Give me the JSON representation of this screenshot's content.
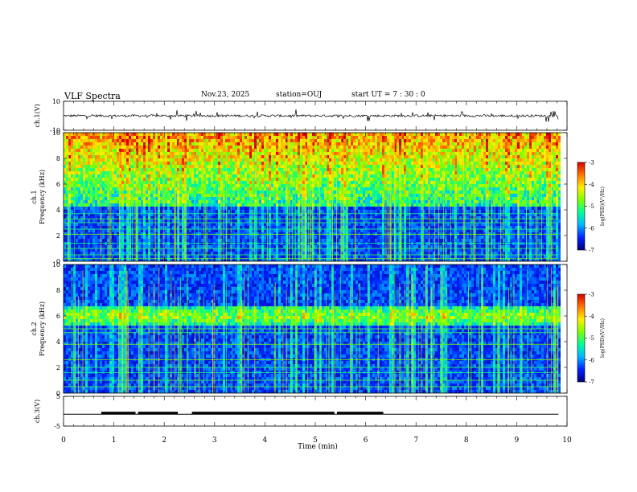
{
  "header": {
    "title": "VLF Spectra",
    "date": "Nov.23, 2025",
    "station": "station=OUJ",
    "start": "start  UT =   7 : 30 : 0"
  },
  "chart_data": {
    "type": "heatmap",
    "title": "VLF Spectra",
    "xlabel": "Time  (min)",
    "xlim": [
      0,
      10
    ],
    "x_ticks": [
      "0",
      "1",
      "2",
      "3",
      "4",
      "5",
      "6",
      "7",
      "8",
      "9",
      "10"
    ],
    "data_end_min": 9.83,
    "panels": [
      {
        "name": "ch1-waveform",
        "type": "line",
        "ylabel": "ch.1(V)",
        "ylim": [
          -10,
          10
        ],
        "y_ticks": [
          "10",
          "-10"
        ],
        "baseline": 0,
        "noise_amplitude": 0.8
      },
      {
        "name": "ch1-spectrogram",
        "type": "heatmap",
        "ylabel_line1": "ch.1",
        "ylabel_line2": "Frequency  (kHz)",
        "ylim": [
          0,
          10
        ],
        "y_ticks": [
          "0",
          "2",
          "4",
          "6",
          "8",
          "10"
        ],
        "noise_band_khz": [
          4.5,
          10
        ],
        "line_frequencies_khz": [
          0.2,
          0.5,
          1.0,
          1.4,
          2.1,
          2.5,
          3.0,
          3.3,
          3.7
        ],
        "colorbar": {
          "label": "log(PSD)(V²/Hz)",
          "range": [
            -7,
            -3
          ],
          "ticks": [
            "-3",
            "-4",
            "-5",
            "-6",
            "-7"
          ]
        }
      },
      {
        "name": "ch2-spectrogram",
        "type": "heatmap",
        "ylabel_line1": "ch.2",
        "ylabel_line2": "Frequency  (kHz)",
        "ylim": [
          0,
          10
        ],
        "y_ticks": [
          "0",
          "2",
          "4",
          "6",
          "8",
          "10"
        ],
        "noise_band_khz": [
          5.4,
          6.8
        ],
        "line_frequencies_khz": [
          0.5,
          1.0,
          1.6,
          2.0,
          2.6,
          3.8,
          4.7,
          5.0
        ],
        "colorbar": {
          "label": "log(PSD)(V²/Hz)",
          "range": [
            -7,
            -3
          ],
          "ticks": [
            "-3",
            "-4",
            "-5",
            "-6",
            "-7"
          ]
        }
      },
      {
        "name": "ch3-waveform",
        "type": "line",
        "ylabel": "ch.3(V)",
        "ylim": [
          -5,
          5
        ],
        "y_ticks": [
          "5",
          "-5"
        ],
        "level": -1,
        "bursts": [
          [
            0.75,
            1.43
          ],
          [
            1.48,
            2.27
          ],
          [
            2.55,
            5.38
          ],
          [
            5.43,
            6.35
          ]
        ]
      }
    ]
  },
  "colors": {
    "colormap": [
      "#00007a",
      "#0022ff",
      "#00b4ff",
      "#00ff9a",
      "#7cff00",
      "#ffee00",
      "#ff7700",
      "#d80000"
    ],
    "axis": "#000000",
    "trace": "#000000"
  }
}
